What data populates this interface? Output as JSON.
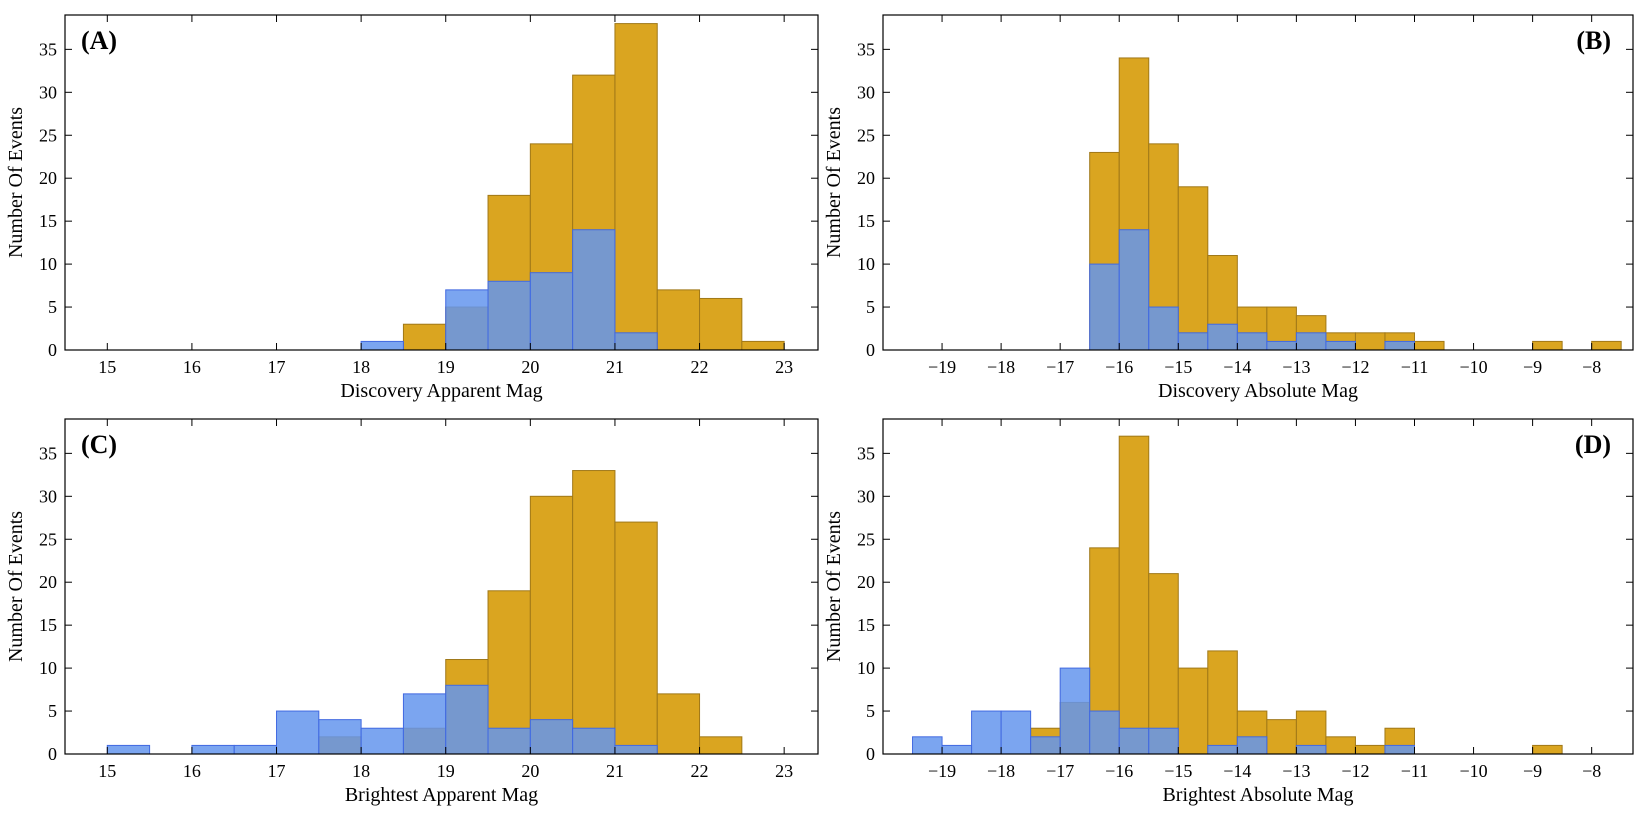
{
  "colors": {
    "ztf": "#DAA520",
    "ztf_edge": "#A07818",
    "other": "#6495ED",
    "other_edge": "#4169E1",
    "frame": "#000000"
  },
  "chart_data": [
    {
      "id": "A",
      "type": "bar",
      "title": "",
      "panel_label": "(A)",
      "panel_label_pos": "top-left",
      "xlabel": "Discovery Apparent Mag",
      "ylabel": "Number Of Events",
      "xlim": [
        14.5,
        23.4
      ],
      "ylim": [
        0,
        39
      ],
      "xticks": [
        15,
        16,
        17,
        18,
        19,
        20,
        21,
        22,
        23
      ],
      "yticks": [
        0,
        5,
        10,
        15,
        20,
        25,
        30,
        35
      ],
      "bin_width": 0.5,
      "series": [
        {
          "name": "gold",
          "color_key": "ztf",
          "bins": [
            [
              18.5,
              3
            ],
            [
              19.0,
              5
            ],
            [
              19.5,
              18
            ],
            [
              20.0,
              24
            ],
            [
              20.5,
              32
            ],
            [
              21.0,
              38
            ],
            [
              21.5,
              7
            ],
            [
              22.0,
              6
            ],
            [
              22.5,
              1
            ]
          ]
        },
        {
          "name": "blue",
          "color_key": "other",
          "bins": [
            [
              18.0,
              1
            ],
            [
              19.0,
              7
            ],
            [
              19.5,
              8
            ],
            [
              20.0,
              9
            ],
            [
              20.5,
              14
            ],
            [
              21.0,
              2
            ]
          ]
        }
      ]
    },
    {
      "id": "B",
      "type": "bar",
      "title": "",
      "panel_label": "(B)",
      "panel_label_pos": "top-right",
      "xlabel": "Discovery Absolute Mag",
      "ylabel": "Number Of Events",
      "xlim": [
        -20.0,
        -7.3
      ],
      "ylim": [
        0,
        39
      ],
      "xticks": [
        -19,
        -18,
        -17,
        -16,
        -15,
        -14,
        -13,
        -12,
        -11,
        -10,
        -9,
        -8
      ],
      "xtick_labels": [
        "−19",
        "−18",
        "−17",
        "−16",
        "−15",
        "−14",
        "−13",
        "−12",
        "−11",
        "−10",
        "−9",
        "−8"
      ],
      "yticks": [
        0,
        5,
        10,
        15,
        20,
        25,
        30,
        35
      ],
      "bin_width": 0.5,
      "series": [
        {
          "name": "gold",
          "color_key": "ztf",
          "bins": [
            [
              -16.5,
              23
            ],
            [
              -16.0,
              34
            ],
            [
              -15.5,
              24
            ],
            [
              -15.0,
              19
            ],
            [
              -14.5,
              11
            ],
            [
              -14.0,
              5
            ],
            [
              -13.5,
              5
            ],
            [
              -13.0,
              4
            ],
            [
              -12.5,
              2
            ],
            [
              -12.0,
              2
            ],
            [
              -11.5,
              2
            ],
            [
              -11.0,
              1
            ],
            [
              -9.0,
              1
            ],
            [
              -8.0,
              1
            ]
          ]
        },
        {
          "name": "blue",
          "color_key": "other",
          "bins": [
            [
              -16.5,
              10
            ],
            [
              -16.0,
              14
            ],
            [
              -15.5,
              5
            ],
            [
              -15.0,
              2
            ],
            [
              -14.5,
              3
            ],
            [
              -14.0,
              2
            ],
            [
              -13.5,
              1
            ],
            [
              -13.0,
              2
            ],
            [
              -12.5,
              1
            ],
            [
              -11.5,
              1
            ]
          ]
        }
      ]
    },
    {
      "id": "C",
      "type": "bar",
      "title": "",
      "panel_label": "(C)",
      "panel_label_pos": "top-left",
      "xlabel": "Brightest Apparent Mag",
      "ylabel": "Number Of Events",
      "xlim": [
        14.5,
        23.4
      ],
      "ylim": [
        0,
        39
      ],
      "xticks": [
        15,
        16,
        17,
        18,
        19,
        20,
        21,
        22,
        23
      ],
      "yticks": [
        0,
        5,
        10,
        15,
        20,
        25,
        30,
        35
      ],
      "bin_width": 0.5,
      "series": [
        {
          "name": "gold",
          "color_key": "ztf",
          "bins": [
            [
              17.5,
              2
            ],
            [
              18.5,
              3
            ],
            [
              19.0,
              11
            ],
            [
              19.5,
              19
            ],
            [
              20.0,
              30
            ],
            [
              20.5,
              33
            ],
            [
              21.0,
              27
            ],
            [
              21.5,
              7
            ],
            [
              22.0,
              2
            ]
          ]
        },
        {
          "name": "blue",
          "color_key": "other",
          "bins": [
            [
              15.0,
              1
            ],
            [
              16.0,
              1
            ],
            [
              16.5,
              1
            ],
            [
              17.0,
              5
            ],
            [
              17.5,
              4
            ],
            [
              18.0,
              3
            ],
            [
              18.5,
              7
            ],
            [
              19.0,
              8
            ],
            [
              19.5,
              3
            ],
            [
              20.0,
              4
            ],
            [
              20.5,
              3
            ],
            [
              21.0,
              1
            ]
          ]
        }
      ]
    },
    {
      "id": "D",
      "type": "bar",
      "title": "",
      "panel_label": "(D)",
      "panel_label_pos": "top-right",
      "xlabel": "Brightest Absolute Mag",
      "ylabel": "Number Of Events",
      "xlim": [
        -20.0,
        -7.3
      ],
      "ylim": [
        0,
        39
      ],
      "xticks": [
        -19,
        -18,
        -17,
        -16,
        -15,
        -14,
        -13,
        -12,
        -11,
        -10,
        -9,
        -8
      ],
      "xtick_labels": [
        "−19",
        "−18",
        "−17",
        "−16",
        "−15",
        "−14",
        "−13",
        "−12",
        "−11",
        "−10",
        "−9",
        "−8"
      ],
      "yticks": [
        0,
        5,
        10,
        15,
        20,
        25,
        30,
        35
      ],
      "bin_width": 0.5,
      "series": [
        {
          "name": "gold",
          "color_key": "ztf",
          "bins": [
            [
              -17.5,
              3
            ],
            [
              -17.0,
              6
            ],
            [
              -16.5,
              24
            ],
            [
              -16.0,
              37
            ],
            [
              -15.5,
              21
            ],
            [
              -15.0,
              10
            ],
            [
              -14.5,
              12
            ],
            [
              -14.0,
              5
            ],
            [
              -13.5,
              4
            ],
            [
              -13.0,
              5
            ],
            [
              -12.5,
              2
            ],
            [
              -12.0,
              1
            ],
            [
              -11.5,
              3
            ],
            [
              -9.0,
              1
            ]
          ]
        },
        {
          "name": "blue",
          "color_key": "other",
          "bins": [
            [
              -19.5,
              2
            ],
            [
              -19.0,
              1
            ],
            [
              -18.5,
              5
            ],
            [
              -18.0,
              5
            ],
            [
              -17.5,
              2
            ],
            [
              -17.0,
              10
            ],
            [
              -16.5,
              5
            ],
            [
              -16.0,
              3
            ],
            [
              -15.5,
              3
            ],
            [
              -14.5,
              1
            ],
            [
              -14.0,
              2
            ],
            [
              -13.0,
              1
            ],
            [
              -11.5,
              1
            ]
          ]
        }
      ]
    }
  ]
}
